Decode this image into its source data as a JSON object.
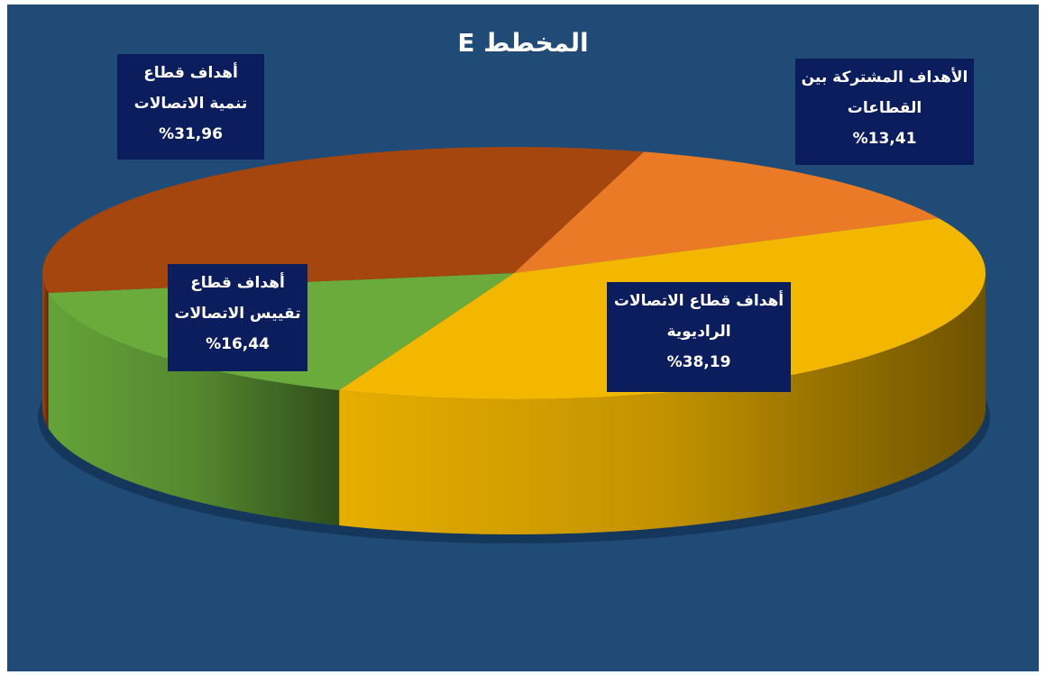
{
  "chart_data": {
    "type": "pie",
    "title": "المخطط E",
    "categories": [
      "الأهداف المشتركة بين القطاعات",
      "أهداف قطاع الاتصالات الراديوية",
      "أهداف قطاع تقييس الاتصالات",
      "أهداف قطاع تنمية الاتصالات"
    ],
    "values": [
      13.41,
      38.19,
      16.44,
      31.96
    ],
    "value_labels": [
      "%13,41",
      "%38,19",
      "%16,44",
      "%31,96"
    ],
    "colors": [
      "#ea7a26",
      "#f3b700",
      "#6aab3b",
      "#a4460e"
    ]
  }
}
